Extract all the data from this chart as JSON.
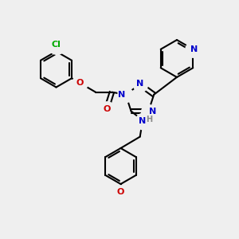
{
  "background_color": "#efefef",
  "bond_color": "#000000",
  "bond_width": 1.5,
  "atom_colors": {
    "C": "#000000",
    "N": "#0000cc",
    "O": "#cc0000",
    "Cl": "#00aa00",
    "H": "#888888"
  }
}
